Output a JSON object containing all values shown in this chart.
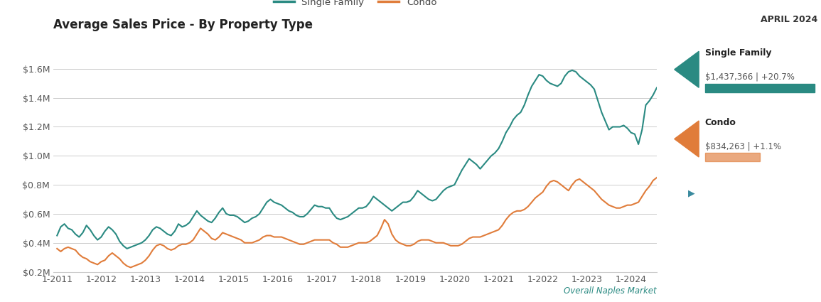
{
  "title": "Average Sales Price - By Property Type",
  "subtitle": "APRIL 2024",
  "sf_label": "Single Family",
  "condo_label": "Condo",
  "sf_value": "$1,437,366 | +20.7%",
  "condo_value": "$834,263 | +1.1%",
  "sf_color": "#2a8a82",
  "condo_color": "#e07c3a",
  "bg_color": "#ffffff",
  "grid_color": "#cccccc",
  "overall_label": "Overall Naples Market",
  "ylim_min": 200000,
  "ylim_max": 1700000,
  "yticks": [
    200000,
    400000,
    600000,
    800000,
    1000000,
    1200000,
    1400000,
    1600000
  ],
  "ytick_labels": [
    "$0.2M",
    "$0.4M",
    "$0.6M",
    "$0.8M",
    "$1.0M",
    "$1.2M",
    "$1.4M",
    "$1.6M"
  ],
  "sf_data": [
    450000,
    510000,
    530000,
    500000,
    490000,
    460000,
    440000,
    470000,
    520000,
    490000,
    450000,
    420000,
    440000,
    480000,
    510000,
    490000,
    460000,
    410000,
    380000,
    360000,
    370000,
    380000,
    390000,
    400000,
    420000,
    450000,
    490000,
    510000,
    500000,
    480000,
    460000,
    450000,
    480000,
    530000,
    510000,
    520000,
    540000,
    580000,
    620000,
    590000,
    570000,
    550000,
    540000,
    570000,
    610000,
    640000,
    600000,
    590000,
    590000,
    580000,
    560000,
    540000,
    550000,
    570000,
    580000,
    600000,
    640000,
    680000,
    700000,
    680000,
    670000,
    660000,
    640000,
    620000,
    610000,
    590000,
    580000,
    580000,
    600000,
    630000,
    660000,
    650000,
    650000,
    640000,
    640000,
    600000,
    570000,
    560000,
    570000,
    580000,
    600000,
    620000,
    640000,
    640000,
    650000,
    680000,
    720000,
    700000,
    680000,
    660000,
    640000,
    620000,
    640000,
    660000,
    680000,
    680000,
    690000,
    720000,
    760000,
    740000,
    720000,
    700000,
    690000,
    700000,
    730000,
    760000,
    780000,
    790000,
    800000,
    850000,
    900000,
    940000,
    980000,
    960000,
    940000,
    910000,
    940000,
    970000,
    1000000,
    1020000,
    1050000,
    1100000,
    1160000,
    1200000,
    1250000,
    1280000,
    1300000,
    1350000,
    1420000,
    1480000,
    1520000,
    1560000,
    1550000,
    1520000,
    1500000,
    1490000,
    1480000,
    1500000,
    1550000,
    1580000,
    1590000,
    1580000,
    1550000,
    1530000,
    1510000,
    1490000,
    1460000,
    1380000,
    1300000,
    1240000,
    1180000,
    1200000,
    1200000,
    1200000,
    1210000,
    1190000,
    1160000,
    1150000,
    1080000,
    1180000,
    1350000,
    1380000,
    1420000,
    1470000
  ],
  "condo_data": [
    360000,
    340000,
    360000,
    370000,
    360000,
    350000,
    320000,
    300000,
    290000,
    270000,
    260000,
    250000,
    270000,
    280000,
    310000,
    330000,
    310000,
    290000,
    260000,
    240000,
    230000,
    240000,
    250000,
    260000,
    280000,
    310000,
    350000,
    380000,
    390000,
    380000,
    360000,
    350000,
    360000,
    380000,
    390000,
    390000,
    400000,
    420000,
    460000,
    500000,
    480000,
    460000,
    430000,
    420000,
    440000,
    470000,
    460000,
    450000,
    440000,
    430000,
    420000,
    400000,
    400000,
    400000,
    410000,
    420000,
    440000,
    450000,
    450000,
    440000,
    440000,
    440000,
    430000,
    420000,
    410000,
    400000,
    390000,
    390000,
    400000,
    410000,
    420000,
    420000,
    420000,
    420000,
    420000,
    400000,
    390000,
    370000,
    370000,
    370000,
    380000,
    390000,
    400000,
    400000,
    400000,
    410000,
    430000,
    450000,
    500000,
    560000,
    530000,
    460000,
    420000,
    400000,
    390000,
    380000,
    380000,
    390000,
    410000,
    420000,
    420000,
    420000,
    410000,
    400000,
    400000,
    400000,
    390000,
    380000,
    380000,
    380000,
    390000,
    410000,
    430000,
    440000,
    440000,
    440000,
    450000,
    460000,
    470000,
    480000,
    490000,
    520000,
    560000,
    590000,
    610000,
    620000,
    620000,
    630000,
    650000,
    680000,
    710000,
    730000,
    750000,
    790000,
    820000,
    830000,
    820000,
    800000,
    780000,
    760000,
    800000,
    830000,
    840000,
    820000,
    800000,
    780000,
    760000,
    730000,
    700000,
    680000,
    660000,
    650000,
    640000,
    640000,
    650000,
    660000,
    660000,
    670000,
    680000,
    720000,
    760000,
    790000,
    830000,
    850000
  ],
  "x_tick_positions": [
    0,
    12,
    24,
    36,
    48,
    60,
    72,
    84,
    96,
    108,
    120,
    132,
    144,
    156
  ],
  "x_tick_labels": [
    "1-2011",
    "1-2012",
    "1-2013",
    "1-2014",
    "1-2015",
    "1-2016",
    "1-2017",
    "1-2018",
    "1-2019",
    "1-2020",
    "1-2021",
    "1-2022",
    "1-2023",
    "1-2024"
  ]
}
